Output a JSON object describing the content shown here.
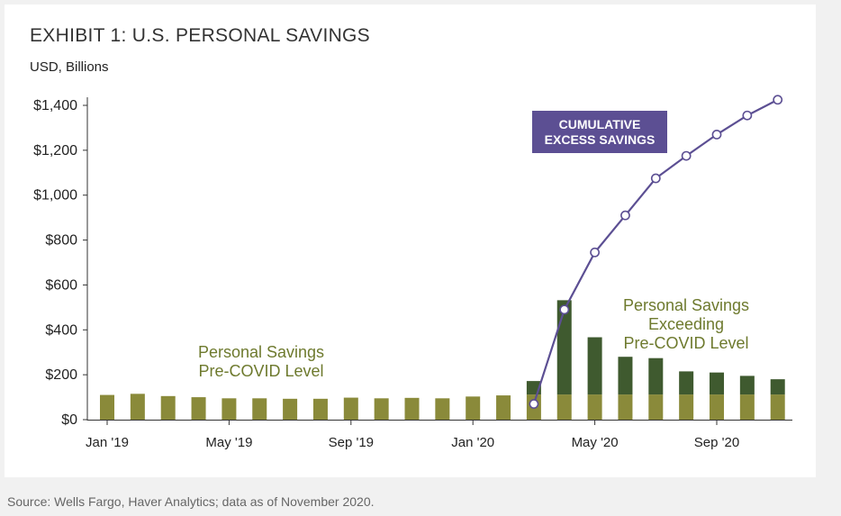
{
  "title": "EXHIBIT 1: U.S. PERSONAL SAVINGS",
  "unit_label": "USD, Billions",
  "source": "Source: Wells Fargo, Haver Analytics; data as of November 2020.",
  "colors": {
    "baseline_bar": "#8a8a3a",
    "excess_bar": "#3f5a2f",
    "cumulative_line": "#5c4f93",
    "axis": "#333333",
    "annotation_text": "#6e7a2e"
  },
  "chart_data": {
    "type": "bar",
    "x_tick_labels": [
      "Jan '19",
      "May '19",
      "Sep '19",
      "Jan '20",
      "May '20",
      "Sep '20"
    ],
    "x_tick_months": [
      0,
      4,
      8,
      12,
      16,
      20
    ],
    "ylim": [
      0,
      1400
    ],
    "y_ticks": [
      0,
      200,
      400,
      600,
      800,
      1000,
      1200,
      1400
    ],
    "y_tick_labels": [
      "$0",
      "$200",
      "$400",
      "$600",
      "$800",
      "$1,000",
      "$1,200",
      "$1,400"
    ],
    "grid": false,
    "months": [
      "Jan 2019",
      "Feb 2019",
      "Mar 2019",
      "Apr 2019",
      "May 2019",
      "Jun 2019",
      "Jul 2019",
      "Aug 2019",
      "Sep 2019",
      "Oct 2019",
      "Nov 2019",
      "Dec 2019",
      "Jan 2020",
      "Feb 2020",
      "Mar 2020",
      "Apr 2020",
      "May 2020",
      "Jun 2020",
      "Jul 2020",
      "Aug 2020",
      "Sep 2020",
      "Oct 2020",
      "Nov 2020"
    ],
    "series": [
      {
        "kind": "bar",
        "values": [
          110,
          115,
          105,
          100,
          95,
          95,
          93,
          93,
          98,
          95,
          97,
          95,
          103,
          108,
          112,
          112,
          112,
          112,
          112,
          112,
          112,
          112,
          112
        ]
      },
      {
        "kind": "bar-stacked",
        "values": [
          0,
          0,
          0,
          0,
          0,
          0,
          0,
          0,
          0,
          0,
          0,
          0,
          0,
          0,
          60,
          420,
          255,
          168,
          162,
          103,
          98,
          83,
          68
        ]
      },
      {
        "kind": "line",
        "start_index": 14,
        "values": [
          70,
          490,
          745,
          910,
          1075,
          1175,
          1270,
          1355,
          1425
        ]
      }
    ],
    "annotations": [
      {
        "id": "cumulative",
        "text_lines": [
          "CUMULATIVE",
          "EXCESS SAVINGS"
        ]
      },
      {
        "id": "pre_covid",
        "text_lines": [
          "Personal Savings",
          "Pre-COVID Level"
        ]
      },
      {
        "id": "exceeding",
        "text_lines": [
          "Personal Savings",
          "Exceeding",
          "Pre-COVID Level"
        ]
      }
    ]
  }
}
